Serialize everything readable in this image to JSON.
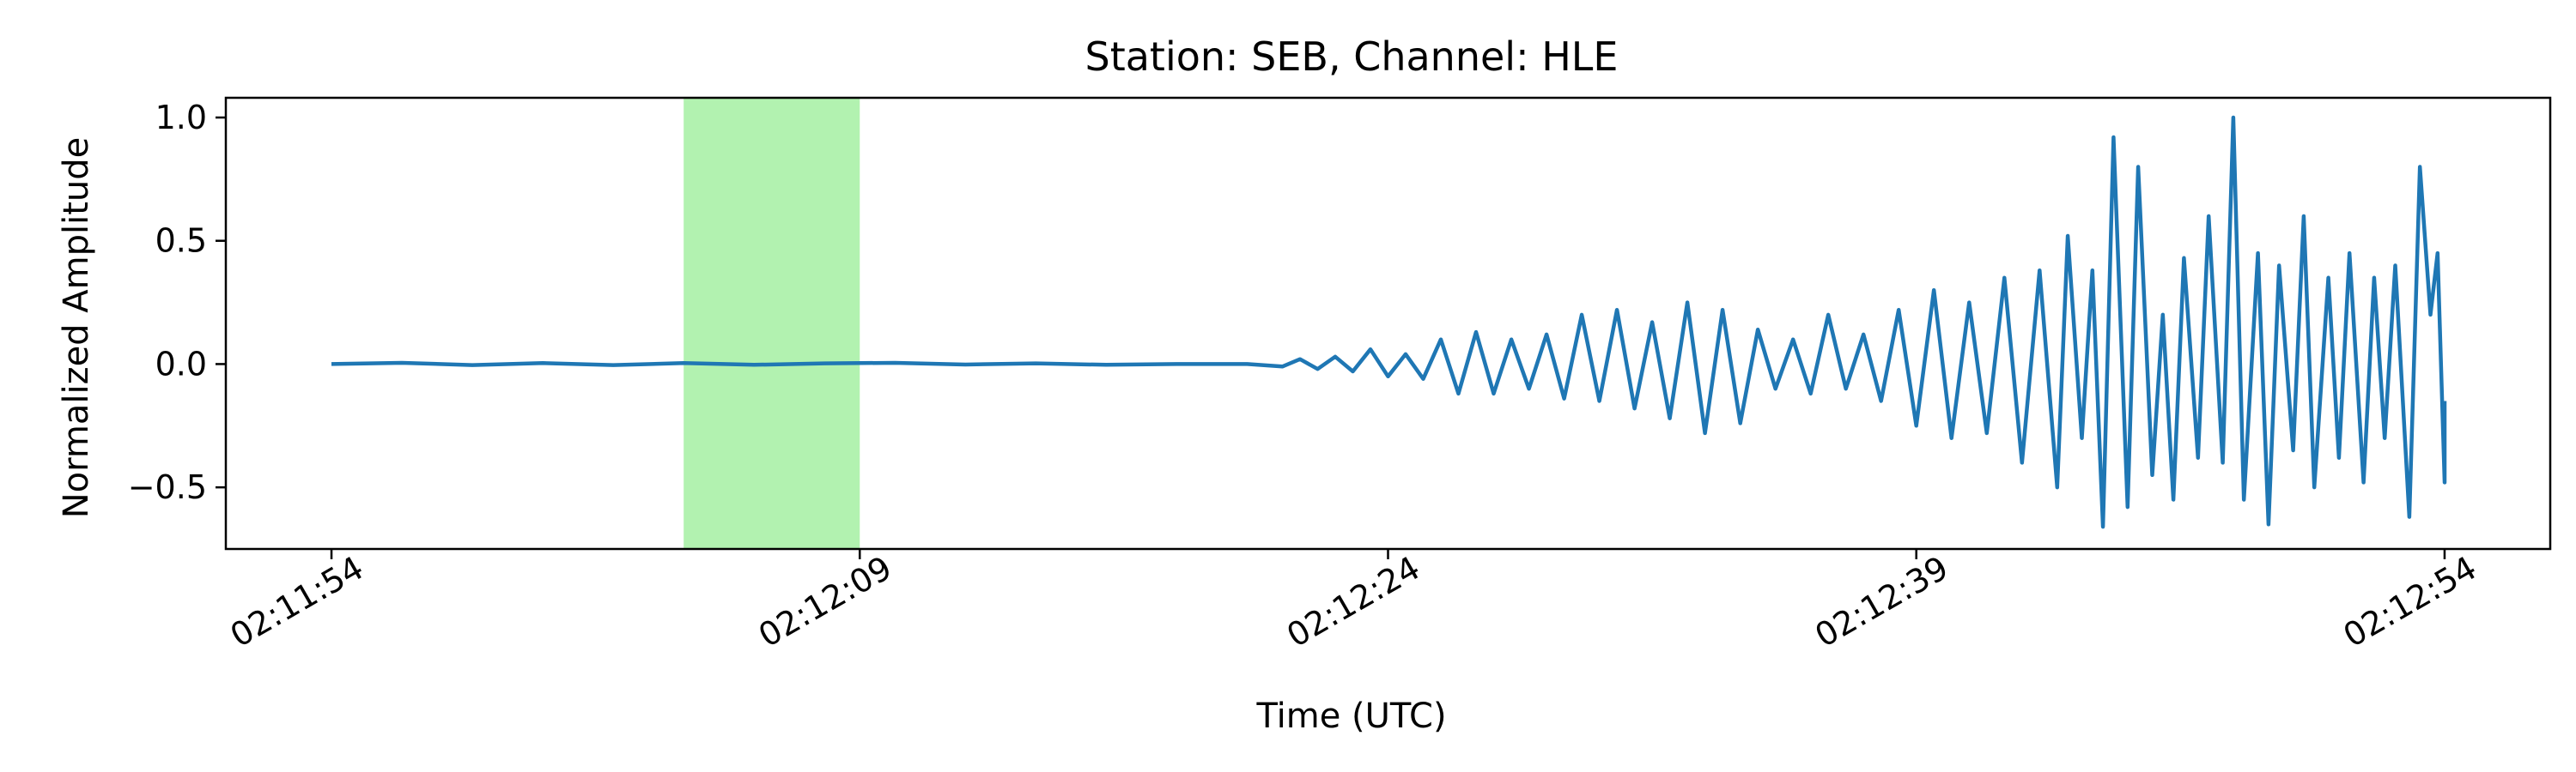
{
  "chart_data": {
    "type": "line",
    "title": "Station: SEB, Channel: HLE",
    "xlabel": "Time (UTC)",
    "ylabel": "Normalized Amplitude",
    "x_unit": "time of day (UTC)",
    "xlim": [
      "02:11:51",
      "02:12:57"
    ],
    "ylim": [
      -0.75,
      1.08
    ],
    "x_ticks": [
      "02:11:54",
      "02:12:09",
      "02:12:24",
      "02:12:39",
      "02:12:54"
    ],
    "y_ticks": [
      1.0,
      0.5,
      0.0,
      -0.5
    ],
    "y_tick_labels": [
      "1.0",
      "0.5",
      "0.0",
      "−0.5"
    ],
    "grid": false,
    "highlight_window": {
      "start": "02:12:04",
      "end": "02:12:09",
      "color": "#b2f2b0"
    },
    "series": [
      {
        "color": "#1f77b4",
        "points": [
          [
            "02:11:54.0",
            0.0
          ],
          [
            "02:11:56.0",
            0.005
          ],
          [
            "02:11:58.0",
            -0.004
          ],
          [
            "02:12:00.0",
            0.004
          ],
          [
            "02:12:02.0",
            -0.004
          ],
          [
            "02:12:04.0",
            0.004
          ],
          [
            "02:12:06.0",
            -0.003
          ],
          [
            "02:12:08.0",
            0.003
          ],
          [
            "02:12:10.0",
            0.005
          ],
          [
            "02:12:12.0",
            -0.002
          ],
          [
            "02:12:14.0",
            0.003
          ],
          [
            "02:12:16.0",
            -0.003
          ],
          [
            "02:12:18.0",
            0.0
          ],
          [
            "02:12:20.0",
            0.0
          ],
          [
            "02:12:21.0",
            -0.01
          ],
          [
            "02:12:21.5",
            0.02
          ],
          [
            "02:12:22.0",
            -0.02
          ],
          [
            "02:12:22.5",
            0.03
          ],
          [
            "02:12:23.0",
            -0.03
          ],
          [
            "02:12:23.5",
            0.06
          ],
          [
            "02:12:24.0",
            -0.05
          ],
          [
            "02:12:24.5",
            0.04
          ],
          [
            "02:12:25.0",
            -0.06
          ],
          [
            "02:12:25.5",
            0.1
          ],
          [
            "02:12:26.0",
            -0.12
          ],
          [
            "02:12:26.5",
            0.13
          ],
          [
            "02:12:27.0",
            -0.12
          ],
          [
            "02:12:27.5",
            0.1
          ],
          [
            "02:12:28.0",
            -0.1
          ],
          [
            "02:12:28.5",
            0.12
          ],
          [
            "02:12:29.0",
            -0.14
          ],
          [
            "02:12:29.5",
            0.2
          ],
          [
            "02:12:30.0",
            -0.15
          ],
          [
            "02:12:30.5",
            0.22
          ],
          [
            "02:12:31.0",
            -0.18
          ],
          [
            "02:12:31.5",
            0.17
          ],
          [
            "02:12:32.0",
            -0.22
          ],
          [
            "02:12:32.5",
            0.25
          ],
          [
            "02:12:33.0",
            -0.28
          ],
          [
            "02:12:33.5",
            0.22
          ],
          [
            "02:12:34.0",
            -0.24
          ],
          [
            "02:12:34.5",
            0.14
          ],
          [
            "02:12:35.0",
            -0.1
          ],
          [
            "02:12:35.5",
            0.1
          ],
          [
            "02:12:36.0",
            -0.12
          ],
          [
            "02:12:36.5",
            0.2
          ],
          [
            "02:12:37.0",
            -0.1
          ],
          [
            "02:12:37.5",
            0.12
          ],
          [
            "02:12:38.0",
            -0.15
          ],
          [
            "02:12:38.5",
            0.22
          ],
          [
            "02:12:39.0",
            -0.25
          ],
          [
            "02:12:39.5",
            0.3
          ],
          [
            "02:12:40.0",
            -0.3
          ],
          [
            "02:12:40.5",
            0.25
          ],
          [
            "02:12:41.0",
            -0.28
          ],
          [
            "02:12:41.5",
            0.35
          ],
          [
            "02:12:42.0",
            -0.4
          ],
          [
            "02:12:42.5",
            0.38
          ],
          [
            "02:12:43.0",
            -0.5
          ],
          [
            "02:12:43.3",
            0.52
          ],
          [
            "02:12:43.7",
            -0.3
          ],
          [
            "02:12:44.0",
            0.38
          ],
          [
            "02:12:44.3",
            -0.66
          ],
          [
            "02:12:44.6",
            0.92
          ],
          [
            "02:12:45.0",
            -0.58
          ],
          [
            "02:12:45.3",
            0.8
          ],
          [
            "02:12:45.7",
            -0.45
          ],
          [
            "02:12:46.0",
            0.2
          ],
          [
            "02:12:46.3",
            -0.55
          ],
          [
            "02:12:46.6",
            0.43
          ],
          [
            "02:12:47.0",
            -0.38
          ],
          [
            "02:12:47.3",
            0.6
          ],
          [
            "02:12:47.7",
            -0.4
          ],
          [
            "02:12:48.0",
            1.0
          ],
          [
            "02:12:48.3",
            -0.55
          ],
          [
            "02:12:48.7",
            0.45
          ],
          [
            "02:12:49.0",
            -0.65
          ],
          [
            "02:12:49.3",
            0.4
          ],
          [
            "02:12:49.7",
            -0.35
          ],
          [
            "02:12:50.0",
            0.6
          ],
          [
            "02:12:50.3",
            -0.5
          ],
          [
            "02:12:50.7",
            0.35
          ],
          [
            "02:12:51.0",
            -0.38
          ],
          [
            "02:12:51.3",
            0.45
          ],
          [
            "02:12:51.7",
            -0.48
          ],
          [
            "02:12:52.0",
            0.35
          ],
          [
            "02:12:52.3",
            -0.3
          ],
          [
            "02:12:52.6",
            0.4
          ],
          [
            "02:12:53.0",
            -0.62
          ],
          [
            "02:12:53.3",
            0.8
          ],
          [
            "02:12:53.6",
            0.2
          ],
          [
            "02:12:53.8",
            0.45
          ],
          [
            "02:12:54.0",
            -0.48
          ],
          [
            "02:12:54.0",
            -0.15
          ]
        ]
      }
    ]
  }
}
